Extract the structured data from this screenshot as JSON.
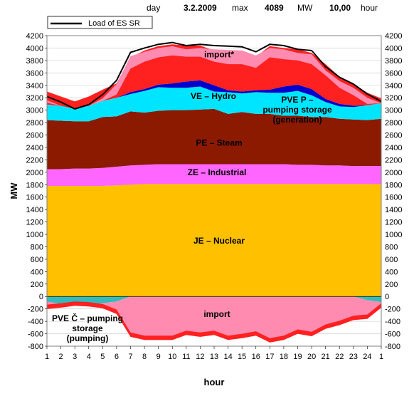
{
  "header": {
    "day_label": "day",
    "day_value": "3.2.2009",
    "max_label": "max",
    "max_value": "4089",
    "unit_label": "MW",
    "hour_value": "10,00",
    "hour_label": "hour"
  },
  "colors": {
    "nuclear": "#FFC000",
    "industrial": "#FF66FF",
    "steam": "#8B1A00",
    "hydro": "#00E5FF",
    "pumping_generation": "#0000CC",
    "import_top": "#FF8CB0",
    "import_red": "#FF2020",
    "pumping": "#33BBBB",
    "load_line": "#000000"
  },
  "chart_data": {
    "type": "area",
    "title": "",
    "xlabel": "hour",
    "ylabel": "MW",
    "ylim": [
      -800,
      4200
    ],
    "ytick_step": 200,
    "x": [
      "1",
      "2",
      "3",
      "4",
      "5",
      "6",
      "7",
      "8",
      "9",
      "10",
      "11",
      "12",
      "13",
      "14",
      "15",
      "16",
      "17",
      "18",
      "19",
      "20",
      "21",
      "22",
      "23",
      "24",
      "1"
    ],
    "legend": {
      "entries": [
        "Load of ES SR"
      ],
      "placement": "top-left"
    },
    "load_line": [
      3220,
      3130,
      3020,
      3090,
      3250,
      3480,
      3930,
      4000,
      4060,
      4089,
      4040,
      4060,
      4040,
      4030,
      4020,
      3940,
      4060,
      4040,
      3980,
      3960,
      3700,
      3530,
      3420,
      3260,
      3140
    ],
    "positive_series": [
      {
        "key": "nuclear",
        "label": "JE – Nuclear",
        "values": [
          1780,
          1780,
          1780,
          1780,
          1780,
          1790,
          1800,
          1810,
          1810,
          1810,
          1810,
          1810,
          1810,
          1810,
          1810,
          1810,
          1810,
          1810,
          1810,
          1810,
          1810,
          1810,
          1810,
          1810,
          1810
        ]
      },
      {
        "key": "industrial",
        "label": "ZE – Industrial",
        "values": [
          270,
          270,
          280,
          280,
          290,
          300,
          310,
          310,
          320,
          320,
          320,
          320,
          320,
          320,
          320,
          320,
          320,
          320,
          310,
          310,
          300,
          300,
          290,
          290,
          290
        ]
      },
      {
        "key": "steam",
        "label": "PE – Steam",
        "values": [
          790,
          780,
          760,
          760,
          820,
          810,
          870,
          840,
          860,
          870,
          870,
          880,
          890,
          810,
          840,
          810,
          810,
          780,
          790,
          770,
          780,
          750,
          750,
          740,
          760
        ]
      },
      {
        "key": "hydro",
        "label": "VE – Hydro",
        "values": [
          250,
          240,
          200,
          250,
          260,
          300,
          280,
          350,
          380,
          360,
          360,
          370,
          280,
          350,
          300,
          350,
          340,
          370,
          400,
          350,
          240,
          200,
          200,
          240,
          250
        ]
      },
      {
        "key": "pumping_generation",
        "label": "PVE P – pumping storage (generation)",
        "values": [
          0,
          0,
          0,
          0,
          0,
          0,
          30,
          30,
          40,
          70,
          100,
          100,
          100,
          30,
          30,
          30,
          50,
          100,
          100,
          100,
          50,
          40,
          20,
          0,
          0
        ]
      },
      {
        "key": "import_red",
        "label": "import*",
        "values": [
          210,
          150,
          120,
          150,
          180,
          230,
          560,
          620,
          620,
          630,
          580,
          560,
          560,
          600,
          620,
          540,
          700,
          620,
          570,
          580,
          560,
          440,
          350,
          200,
          80
        ]
      }
    ],
    "negative_series": [
      {
        "key": "pumping",
        "label": "PVE Č – pumping storage (pumping)",
        "values": [
          -80,
          -120,
          -130,
          -120,
          -110,
          -80,
          0,
          0,
          0,
          0,
          0,
          0,
          0,
          0,
          0,
          0,
          0,
          0,
          0,
          0,
          0,
          0,
          0,
          -60,
          -90
        ]
      },
      {
        "key": "import_neg",
        "label": "import",
        "values": [
          -120,
          -60,
          -20,
          -40,
          -80,
          -200,
          -650,
          -700,
          -700,
          -700,
          -620,
          -650,
          -620,
          -700,
          -670,
          -630,
          -740,
          -700,
          -600,
          -640,
          -520,
          -460,
          -380,
          -300,
          -90
        ]
      }
    ]
  }
}
